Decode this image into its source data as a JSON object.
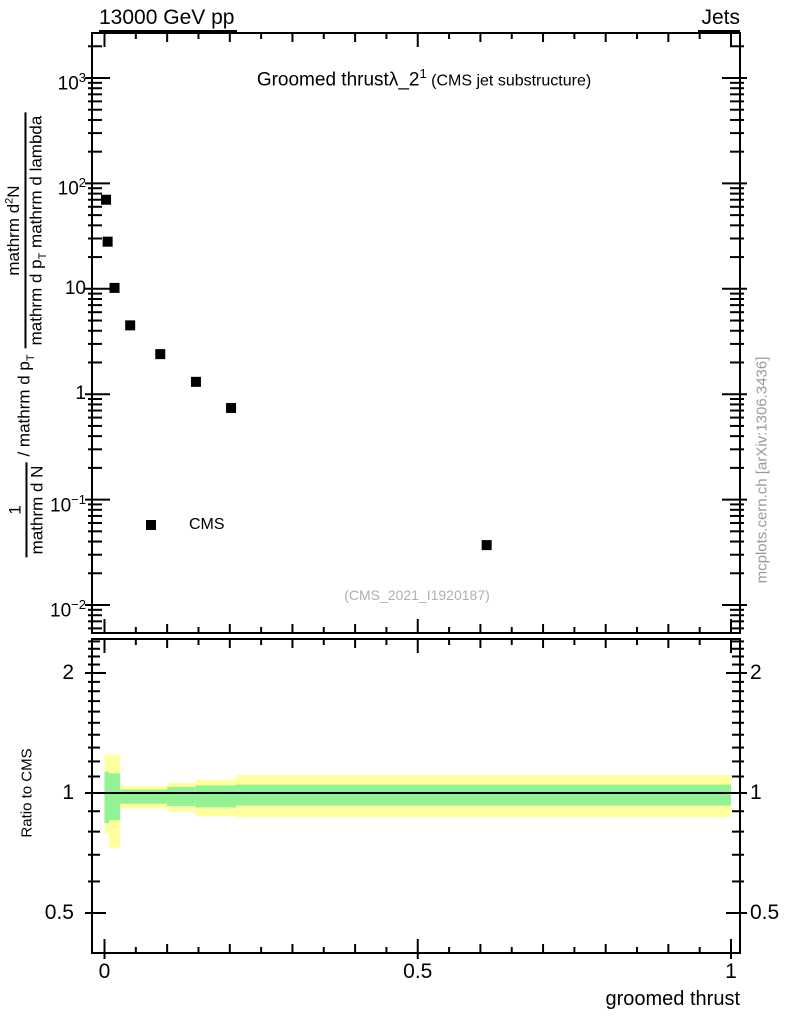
{
  "header": {
    "left": "13000 GeV pp",
    "right": "Jets"
  },
  "title": {
    "main": "Groomed thrustλ_2",
    "sup": "1",
    "note": " (CMS jet substructure)"
  },
  "legend": {
    "label": "CMS",
    "marker": "filled-square",
    "marker_color": "#000000"
  },
  "watermark": "(CMS_2021_I1920187)",
  "side_note": "mcplots.cern.ch [arXiv:1306.3436]",
  "ratio_ylabel": "Ratio to CMS",
  "xlabel": "groomed thrust",
  "ylabel": {
    "num1": "1",
    "den1": "mathrm d N",
    "mid_a": "/ mathrm d p",
    "mid_sub": "T",
    "num2_a": "mathrm d",
    "num2_sup": "2",
    "num2_b": "N",
    "den2_a": "mathrm d p",
    "den2_sub": "T",
    "den2_b": " mathrm d lambda"
  },
  "axes": {
    "x_tick_labels": [
      {
        "text": "0",
        "v": 0
      },
      {
        "text": "0.5",
        "v": 0.5
      },
      {
        "text": "1",
        "v": 1
      }
    ],
    "main_y_tick_labels": [
      {
        "base": "10",
        "exp": "3",
        "v": 1000
      },
      {
        "base": "10",
        "exp": "2",
        "v": 100
      },
      {
        "base": "10",
        "exp": "",
        "v": 10
      },
      {
        "base": "1",
        "exp": "",
        "v": 1
      },
      {
        "base": "10",
        "exp": "−1",
        "v": 0.1
      },
      {
        "base": "10",
        "exp": "−2",
        "v": 0.01
      }
    ],
    "ratio_y_tick_labels": [
      {
        "text": "2",
        "v": 2
      },
      {
        "text": "1",
        "v": 1
      },
      {
        "text": "0.5",
        "v": 0.5
      }
    ]
  },
  "colors": {
    "yellow_band": "#ffff9e",
    "green_band": "#93f293",
    "marker": "#000000",
    "frame": "#000000",
    "gray_text": "#9a9a9a"
  },
  "chart_data": {
    "type": "scatter",
    "title": "Groomed thrust λ_2^1 (CMS jet substructure)",
    "beam_label": "13000 GeV pp",
    "collection_label": "Jets",
    "xlabel": "groomed thrust",
    "x_axis": {
      "scale": "linear",
      "range": [
        -0.02,
        1.016
      ],
      "major_ticks": [
        0,
        0.5,
        1
      ],
      "minor_step": 0.05
    },
    "main_panel": {
      "y_scale": "log",
      "y_range": [
        0.0054,
        2700
      ],
      "y_major_ticks": [
        0.01,
        0.1,
        1,
        10,
        100,
        1000
      ],
      "series": [
        {
          "name": "CMS",
          "marker": "filled-square",
          "color": "#000000",
          "x": [
            0.0025,
            0.005,
            0.016,
            0.041,
            0.089,
            0.146,
            0.202,
            0.61
          ],
          "y": [
            70,
            28,
            10.2,
            4.5,
            2.4,
            1.31,
            0.74,
            0.037
          ]
        }
      ],
      "watermark": "(CMS_2021_I1920187)"
    },
    "ratio_panel": {
      "ylabel": "Ratio to CMS",
      "y_scale": "log",
      "y_range": [
        0.39,
        2.48
      ],
      "y_major_ticks": [
        0.5,
        1,
        2
      ],
      "reference_line": 1.0,
      "bands": [
        {
          "x0": 0.0,
          "x1": 0.007,
          "yellow": [
            0.79,
            1.25
          ],
          "green": [
            0.84,
            1.13
          ]
        },
        {
          "x0": 0.007,
          "x1": 0.025,
          "yellow": [
            0.73,
            1.25
          ],
          "green": [
            0.855,
            1.12
          ]
        },
        {
          "x0": 0.025,
          "x1": 0.1,
          "yellow": [
            0.915,
            1.04
          ],
          "green": [
            0.94,
            1.02
          ]
        },
        {
          "x0": 0.1,
          "x1": 0.145,
          "yellow": [
            0.9,
            1.06
          ],
          "green": [
            0.928,
            1.035
          ]
        },
        {
          "x0": 0.145,
          "x1": 0.21,
          "yellow": [
            0.875,
            1.08
          ],
          "green": [
            0.92,
            1.045
          ]
        },
        {
          "x0": 0.21,
          "x1": 1.0,
          "yellow": [
            0.87,
            1.11
          ],
          "green": [
            0.93,
            1.05
          ]
        }
      ]
    }
  }
}
